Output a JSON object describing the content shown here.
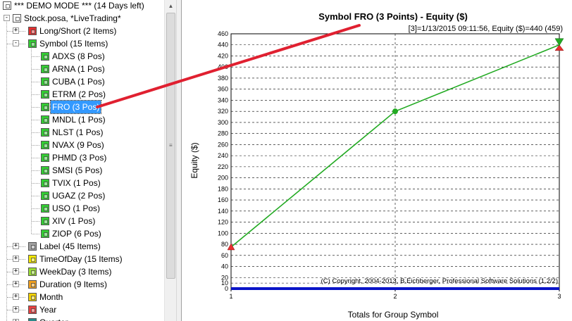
{
  "tree": {
    "items": [
      {
        "label": "*** DEMO MODE *** (14 Days left)",
        "level": 0,
        "icon": "checkbox-icon",
        "color": "#ffffff",
        "expander": "",
        "selected": false
      },
      {
        "label": "Stock.posa, *LiveTrading*",
        "level": 0,
        "icon": "checkbox-icon",
        "color": "#ffffff",
        "expander": "-",
        "selected": false
      },
      {
        "label": "Long/Short (2 Items)",
        "level": 1,
        "icon": "group-icon",
        "color": "#e53030",
        "expander": "+",
        "selected": false
      },
      {
        "label": "Symbol (15 Items)",
        "level": 1,
        "icon": "group-icon",
        "color": "#33cc33",
        "expander": "-",
        "selected": false
      },
      {
        "label": "ADXS (8 Pos)",
        "level": 2,
        "icon": "position-icon",
        "color": "#33cc33",
        "expander": "",
        "selected": false
      },
      {
        "label": "ARNA (1 Pos)",
        "level": 2,
        "icon": "position-icon",
        "color": "#33cc33",
        "expander": "",
        "selected": false
      },
      {
        "label": "CUBA (1 Pos)",
        "level": 2,
        "icon": "position-icon",
        "color": "#33cc33",
        "expander": "",
        "selected": false
      },
      {
        "label": "ETRM (2 Pos)",
        "level": 2,
        "icon": "position-icon",
        "color": "#33cc33",
        "expander": "",
        "selected": false
      },
      {
        "label": "FRO (3 Pos)",
        "level": 2,
        "icon": "position-icon",
        "color": "#33cc33",
        "expander": "",
        "selected": true
      },
      {
        "label": "MNDL (1 Pos)",
        "level": 2,
        "icon": "position-icon",
        "color": "#33cc33",
        "expander": "",
        "selected": false
      },
      {
        "label": "NLST (1 Pos)",
        "level": 2,
        "icon": "position-icon",
        "color": "#33cc33",
        "expander": "",
        "selected": false
      },
      {
        "label": "NVAX (9 Pos)",
        "level": 2,
        "icon": "position-icon",
        "color": "#33cc33",
        "expander": "",
        "selected": false
      },
      {
        "label": "PHMD (3 Pos)",
        "level": 2,
        "icon": "position-icon",
        "color": "#33cc33",
        "expander": "",
        "selected": false
      },
      {
        "label": "SMSI (5 Pos)",
        "level": 2,
        "icon": "position-icon",
        "color": "#33cc33",
        "expander": "",
        "selected": false
      },
      {
        "label": "TVIX (1 Pos)",
        "level": 2,
        "icon": "position-icon",
        "color": "#33cc33",
        "expander": "",
        "selected": false
      },
      {
        "label": "UGAZ (2 Pos)",
        "level": 2,
        "icon": "position-icon",
        "color": "#33cc33",
        "expander": "",
        "selected": false
      },
      {
        "label": "USO (1 Pos)",
        "level": 2,
        "icon": "position-icon",
        "color": "#33cc33",
        "expander": "",
        "selected": false
      },
      {
        "label": "XIV (1 Pos)",
        "level": 2,
        "icon": "position-icon",
        "color": "#33cc33",
        "expander": "",
        "selected": false
      },
      {
        "label": "ZIOP (6 Pos)",
        "level": 2,
        "icon": "position-icon",
        "color": "#33cc33",
        "expander": "",
        "selected": false
      },
      {
        "label": "Label (45 Items)",
        "level": 1,
        "icon": "group-icon",
        "color": "#a0a0a0",
        "expander": "+",
        "selected": false
      },
      {
        "label": "TimeOfDay (15 Items)",
        "level": 1,
        "icon": "group-icon",
        "color": "#f2e600",
        "expander": "+",
        "selected": false
      },
      {
        "label": "WeekDay (3 Items)",
        "level": 1,
        "icon": "group-icon",
        "color": "#99dd33",
        "expander": "+",
        "selected": false
      },
      {
        "label": "Duration (9 Items)",
        "level": 1,
        "icon": "group-icon",
        "color": "#f0a020",
        "expander": "+",
        "selected": false
      },
      {
        "label": "Month",
        "level": 1,
        "icon": "group-icon",
        "color": "#f2d000",
        "expander": "+",
        "selected": false
      },
      {
        "label": "Year",
        "level": 1,
        "icon": "group-icon",
        "color": "#e84040",
        "expander": "+",
        "selected": false
      },
      {
        "label": "Quarter",
        "level": 1,
        "icon": "group-icon",
        "color": "#2a8a8a",
        "expander": "+",
        "selected": false
      }
    ]
  },
  "chart_data": {
    "type": "line",
    "title": "Symbol FRO (3 Points) - Equity ($)",
    "info": "[3]=1/13/2015 09:11:56,   Equity ($)=440 (459)",
    "xlabel": "Totals for Group Symbol",
    "ylabel": "Equity ($)",
    "copyright": "(C) Copyright, 2004-2013, B.Eichberger, Professional Software Solutions (1.2/2)",
    "x": [
      1,
      2,
      3
    ],
    "xlim": [
      1,
      3
    ],
    "ylim": [
      0,
      460
    ],
    "y_ticks": [
      0,
      10,
      20,
      40,
      60,
      80,
      100,
      120,
      140,
      160,
      180,
      200,
      220,
      240,
      260,
      280,
      300,
      320,
      340,
      360,
      380,
      400,
      420,
      440,
      460
    ],
    "x_tick_labels": [
      "1",
      "2",
      "3"
    ],
    "grid": true,
    "series": [
      {
        "values": [
          75,
          320,
          440
        ],
        "color": "#22aa22",
        "style": "line"
      },
      {
        "values": [
          0,
          0,
          0
        ],
        "color": "#0a14c8",
        "style": "baseline"
      }
    ],
    "markers": {
      "start_color": "#e83030",
      "end_color": "#22aa22",
      "max_color": "#e83030"
    },
    "annotation_color": "#e02030"
  }
}
